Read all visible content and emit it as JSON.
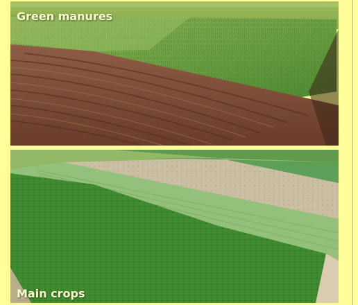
{
  "panels": {
    "top": {
      "caption": "Green manures"
    },
    "bottom": {
      "caption": "Main crops"
    }
  },
  "colors": {
    "background": "#ffff99",
    "caption": "#ffffcc",
    "soil": "#7b4a34",
    "crop_green": "#5e9a3a"
  }
}
